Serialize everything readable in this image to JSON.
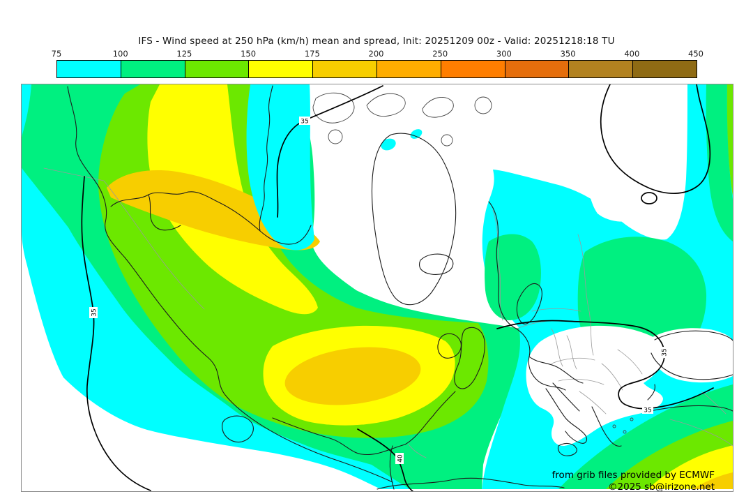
{
  "title": "IFS - Wind speed at 250 hPa (km/h) mean and spread, Init: 20251209 00z - Valid: 20251218:18 TU",
  "colorbar": {
    "unit": "km/h",
    "tick_labels": [
      "75",
      "100",
      "125",
      "150",
      "175",
      "200",
      "250",
      "300",
      "350",
      "400",
      "450"
    ],
    "segment_colors": [
      "#00FFFF",
      "#00F080",
      "#6CE800",
      "#FFFF00",
      "#F7CE00",
      "#FFAD00",
      "#FF7E00",
      "#E56E0C",
      "#B28220",
      "#8F6B14"
    ]
  },
  "map": {
    "contour_labels": [
      {
        "text": "35"
      },
      {
        "text": "35"
      },
      {
        "text": "35"
      },
      {
        "text": "35"
      },
      {
        "text": "40"
      }
    ],
    "attribution": {
      "line1": "from grib files provided by ECMWF",
      "line2": "©2025 sb@irizone.net"
    }
  }
}
